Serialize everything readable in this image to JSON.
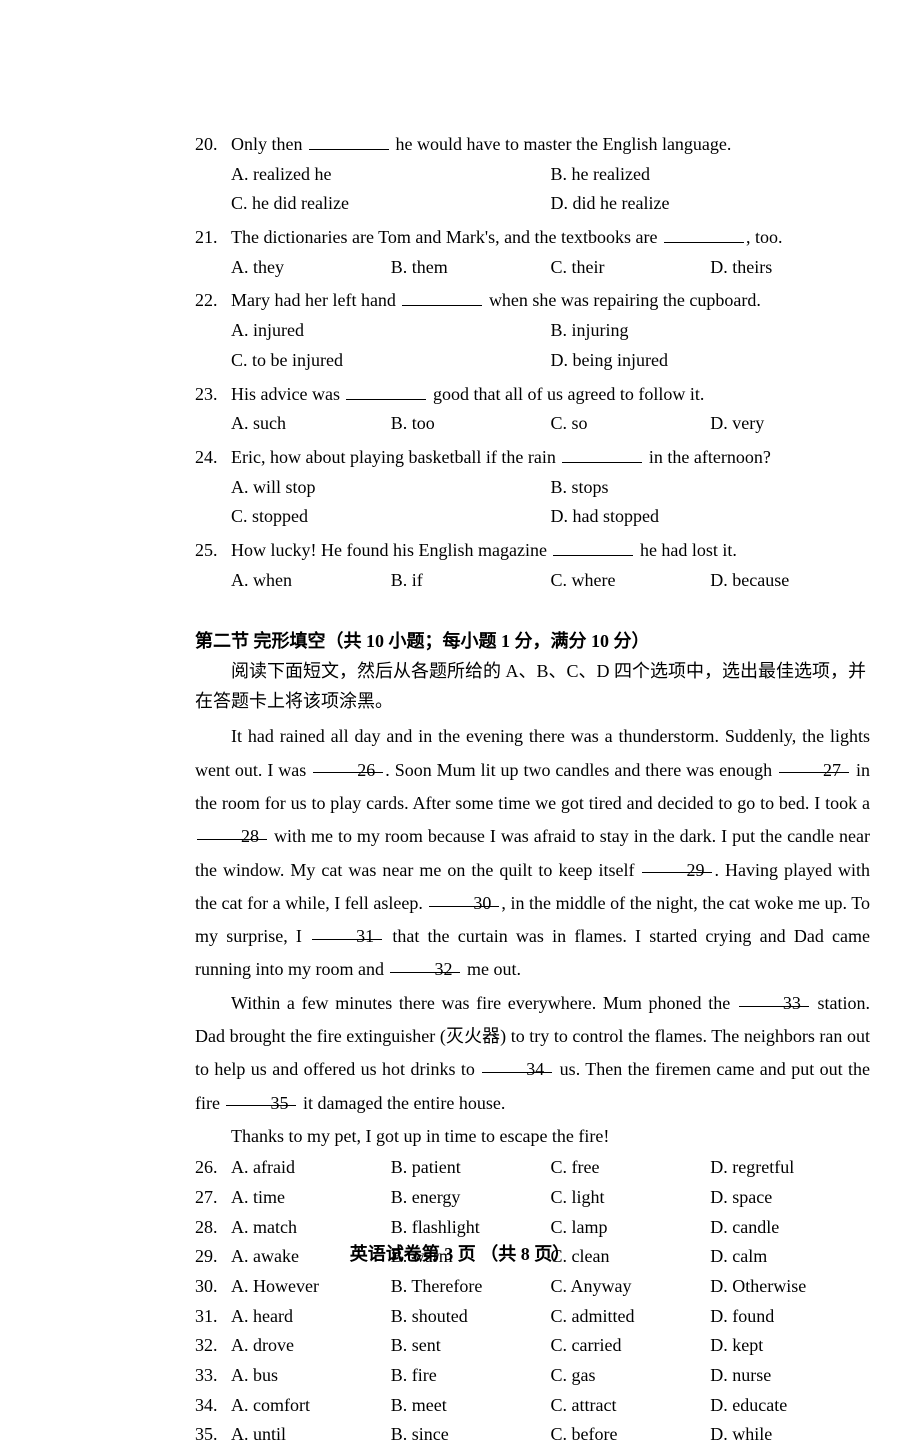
{
  "colors": {
    "text": "#000000",
    "bg": "#ffffff"
  },
  "typography": {
    "font_family": "Times New Roman, SimSun, serif",
    "body_size": 18,
    "line_height": 1.65,
    "passage_line_height": 1.85
  },
  "mc_questions": [
    {
      "num": "20.",
      "stem_pre": "Only then ",
      "stem_post": " he would have to master the English language.",
      "layout": "two-col",
      "opts": {
        "a": "A.  realized he",
        "b": "B.  he realized",
        "c": "C.  he did realize",
        "d": "D.  did he realize"
      }
    },
    {
      "num": "21.",
      "stem_pre": "The dictionaries are Tom and Mark's, and the textbooks are ",
      "stem_post": ", too.",
      "layout": "four-col",
      "opts": {
        "a": "A.  they",
        "b": "B.  them",
        "c": "C.  their",
        "d": "D.  theirs"
      }
    },
    {
      "num": "22.",
      "stem_pre": "Mary had her left hand ",
      "stem_post": " when she was repairing the cupboard.",
      "layout": "two-col",
      "opts": {
        "a": "A.  injured",
        "b": "B.  injuring",
        "c": "C.  to be injured",
        "d": "D.  being injured"
      }
    },
    {
      "num": "23.",
      "stem_pre": "His advice was ",
      "stem_post": " good that all of us agreed to follow it.",
      "layout": "four-col",
      "opts": {
        "a": "A.  such",
        "b": "B.  too",
        "c": "C.  so",
        "d": "D.  very"
      }
    },
    {
      "num": "24.",
      "stem_pre": "Eric, how about playing basketball if the rain ",
      "stem_post": " in the afternoon?",
      "layout": "two-col",
      "opts": {
        "a": "A.  will stop",
        "b": "B.  stops",
        "c": "C.  stopped",
        "d": "D.  had stopped"
      }
    },
    {
      "num": "25.",
      "stem_pre": "How lucky! He found his English magazine ",
      "stem_post": " he had lost it.",
      "layout": "four-col",
      "opts": {
        "a": "A.  when",
        "b": "B.  if",
        "c": "C.  where",
        "d": "D.  because"
      }
    }
  ],
  "section2": {
    "header": "第二节 完形填空（共 10 小题；每小题 1 分，满分 10 分）",
    "instruction": "阅读下面短文，然后从各题所给的 A、B、C、D 四个选项中，选出最佳选项，并在答题卡上将该项涂黑。"
  },
  "passage": {
    "p1_a": "It had rained all day and in the evening there was a thunderstorm. Suddenly, the lights went out. I was ",
    "b26": "26",
    "p1_b": ". Soon Mum lit up two candles and there was enough ",
    "b27": "27",
    "p1_c": " in the room for us to play cards. After some time we got tired and decided to go to bed. I took a ",
    "b28": "28",
    "p1_d": " with me to my room because I was afraid to stay in the dark. I put the candle near the window. My cat was near me on the quilt to keep itself ",
    "b29": "29",
    "p1_e": ". Having played with the cat for a while, I fell asleep. ",
    "b30": "30",
    "p1_f": ", in the middle of the night, the cat woke me up. To my surprise, I ",
    "b31": "31",
    "p1_g": " that the curtain was in flames. I started crying and Dad came running into my room and ",
    "b32": "32",
    "p1_h": " me out.",
    "p2_a": "Within a few minutes there was fire everywhere. Mum phoned the ",
    "b33": "33",
    "p2_b": " station. Dad brought the fire extinguisher (灭火器) to try to control the flames. The neighbors ran out to help us and offered us hot drinks to ",
    "b34": "34",
    "p2_c": " us. Then the firemen came and put out the fire ",
    "b35": "35",
    "p2_d": " it damaged the entire house.",
    "p3": "Thanks to my pet, I got up in time to escape the fire!"
  },
  "cloze_answers": [
    {
      "num": "26.",
      "a": "A.  afraid",
      "b": "B.  patient",
      "c": "C.  free",
      "d": "D.  regretful"
    },
    {
      "num": "27.",
      "a": "A.  time",
      "b": "B.  energy",
      "c": "C.  light",
      "d": "D.  space"
    },
    {
      "num": "28.",
      "a": "A.  match",
      "b": "B.  flashlight",
      "c": "C.  lamp",
      "d": "D.  candle"
    },
    {
      "num": "29.",
      "a": "A.  awake",
      "b": "B.  warm",
      "c": "C.  clean",
      "d": "D.  calm"
    },
    {
      "num": "30.",
      "a": "A.  However",
      "b": "B.  Therefore",
      "c": "C.  Anyway",
      "d": "D.  Otherwise"
    },
    {
      "num": "31.",
      "a": "A.  heard",
      "b": "B.  shouted",
      "c": "C.  admitted",
      "d": "D.  found"
    },
    {
      "num": "32.",
      "a": "A.  drove",
      "b": "B.  sent",
      "c": "C.  carried",
      "d": "D.  kept"
    },
    {
      "num": "33.",
      "a": "A.  bus",
      "b": "B.  fire",
      "c": "C.  gas",
      "d": "D.  nurse"
    },
    {
      "num": "34.",
      "a": "A.  comfort",
      "b": "B.  meet",
      "c": "C.  attract",
      "d": "D.  educate"
    },
    {
      "num": "35.",
      "a": "A.  until",
      "b": "B.  since",
      "c": "C.  before",
      "d": "D.  while"
    }
  ],
  "footer": "英语试卷第 3 页 （共 8 页）"
}
